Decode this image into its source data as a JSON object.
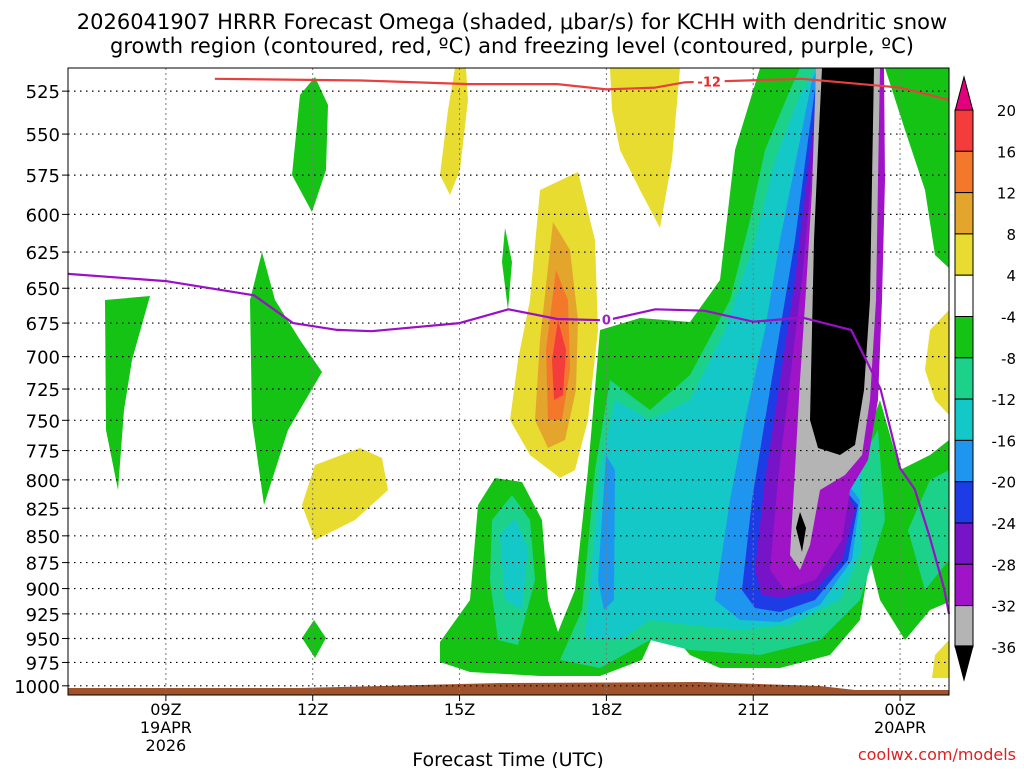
{
  "chart_data": {
    "type": "heatmap",
    "title_line1": "2026041907 HRRR Forecast Omega (shaded, μbar/s) for KCHH with dendritic snow",
    "title_line2": "growth region (contoured, red, ºC) and freezing level (contoured, purple, ºC)",
    "xlabel": "Forecast Time (UTC)",
    "watermark": "coolwx.com/models",
    "x_range_hours": [
      7,
      25
    ],
    "y_range_hpa": [
      512,
      1010
    ],
    "grid": true,
    "x_ticks": [
      {
        "hour": 9,
        "lines": [
          "09Z",
          "19APR",
          "2026"
        ]
      },
      {
        "hour": 12,
        "lines": [
          "12Z"
        ]
      },
      {
        "hour": 15,
        "lines": [
          "15Z"
        ]
      },
      {
        "hour": 18,
        "lines": [
          "18Z"
        ]
      },
      {
        "hour": 21,
        "lines": [
          "21Z"
        ]
      },
      {
        "hour": 24,
        "lines": [
          "00Z",
          "20APR"
        ]
      }
    ],
    "y_ticks": [
      525,
      550,
      575,
      600,
      625,
      650,
      675,
      700,
      725,
      750,
      775,
      800,
      825,
      850,
      875,
      900,
      925,
      950,
      975,
      1000
    ],
    "colorbar": {
      "levels": [
        "20",
        "16",
        "12",
        "8",
        "4",
        "-4",
        "-8",
        "-12",
        "-16",
        "-20",
        "-24",
        "-28",
        "-32",
        "-36"
      ],
      "colors_top_to_bottom": [
        "#e3007b",
        "#f53c3c",
        "#f4782c",
        "#e4a52c",
        "#e8dc30",
        "#ffffff",
        "#14c314",
        "#1cd28a",
        "#14c8c8",
        "#1e96f0",
        "#1e3ce6",
        "#7814c8",
        "#a014c8",
        "#b4b4b4",
        "#000000"
      ]
    },
    "contour_labels": [
      {
        "text": "-12",
        "hour": 20.1,
        "hpa": 520,
        "color": "#e82a2a"
      },
      {
        "text": "0",
        "hour": 18.0,
        "hpa": 673,
        "color": "#a020c8"
      }
    ],
    "snow_growth_line_minus12C": {
      "name": "-12",
      "color": "#e84040",
      "points": [
        [
          10,
          518
        ],
        [
          13,
          519
        ],
        [
          15.2,
          521
        ],
        [
          17,
          521
        ],
        [
          18,
          524
        ],
        [
          19,
          523
        ],
        [
          19.6,
          520
        ],
        [
          22,
          518
        ],
        [
          24,
          523
        ],
        [
          25,
          530
        ]
      ]
    },
    "freezing_level_0C": {
      "name": "0",
      "color": "#9a10c8",
      "points": [
        [
          7,
          640
        ],
        [
          9,
          645
        ],
        [
          10.8,
          655
        ],
        [
          11.6,
          675
        ],
        [
          12.5,
          680
        ],
        [
          13.2,
          681
        ],
        [
          15,
          675
        ],
        [
          16,
          665
        ],
        [
          17,
          672
        ],
        [
          18,
          673
        ],
        [
          19,
          665
        ],
        [
          20,
          666
        ],
        [
          21,
          674
        ],
        [
          22,
          671
        ],
        [
          23,
          680
        ],
        [
          23.6,
          725
        ],
        [
          24,
          790
        ],
        [
          24.3,
          808
        ],
        [
          24.6,
          850
        ],
        [
          24.9,
          900
        ],
        [
          25,
          925
        ]
      ]
    }
  }
}
